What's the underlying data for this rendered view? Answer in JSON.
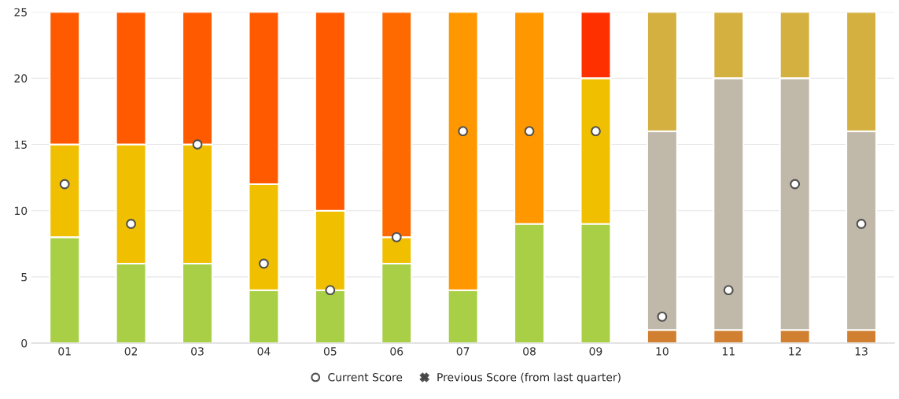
{
  "chart_data": {
    "type": "bar",
    "stacked": true,
    "categories": [
      "01",
      "02",
      "03",
      "04",
      "05",
      "06",
      "07",
      "08",
      "09",
      "10",
      "11",
      "12",
      "13"
    ],
    "series": [
      {
        "type": "bar",
        "colors": [
          "#a8cf45",
          "#a8cf45",
          "#a8cf45",
          "#a8cf45",
          "#a8cf45",
          "#a8cf45",
          "#a8cf45",
          "#a8cf45",
          "#a8cf45",
          "#d08030",
          "#d08030",
          "#d08030",
          "#d08030"
        ],
        "values": [
          8,
          6,
          6,
          4,
          4,
          6,
          4,
          9,
          9,
          1,
          1,
          1,
          1
        ]
      },
      {
        "type": "bar",
        "colors": [
          "#f0c000",
          "#f0c000",
          "#f0c000",
          "#f0c000",
          "#f0c000",
          "#f0c000",
          "#ff9800",
          "#ff9800",
          "#f0c000",
          "#c0b8a8",
          "#c0b8a8",
          "#c0b8a8",
          "#c0b8a8"
        ],
        "values": [
          7,
          9,
          9,
          8,
          6,
          2,
          21,
          16,
          11,
          15,
          19,
          19,
          15
        ]
      },
      {
        "type": "bar",
        "colors": [
          "#ff5a00",
          "#ff5a00",
          "#ff5a00",
          "#ff5a00",
          "#ff5a00",
          "#ff6a00",
          "#ff5a00",
          "#ff5a00",
          "#ff3000",
          "#d4b040",
          "#d4b040",
          "#d4b040",
          "#d4b040"
        ],
        "values": [
          10,
          10,
          10,
          13,
          15,
          17,
          null,
          null,
          5,
          9,
          5,
          5,
          9
        ]
      },
      {
        "type": "scatter",
        "name": "Current Score",
        "color": "#ffffff",
        "marker": "circle",
        "values": [
          12,
          9,
          15,
          6,
          4,
          8,
          16,
          16,
          16,
          2,
          4,
          12,
          9
        ]
      },
      {
        "type": "scatter",
        "name": "Previous Score (from last quarter)",
        "color": "#404040",
        "marker": "cross",
        "values": [
          null,
          null,
          null,
          null,
          null,
          null,
          null,
          null,
          null,
          null,
          null,
          null,
          null
        ]
      }
    ],
    "ylim": [
      0,
      25
    ],
    "yticks": [
      0,
      5,
      10,
      15,
      20,
      25
    ],
    "grid": "y",
    "legend": "bottom"
  }
}
